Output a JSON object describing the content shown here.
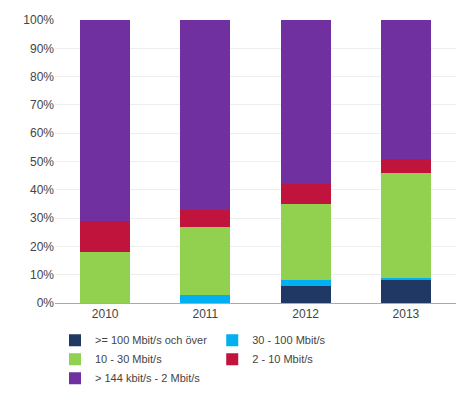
{
  "chart_data": {
    "type": "bar",
    "stacked": true,
    "categories": [
      "2010",
      "2011",
      "2012",
      "2013"
    ],
    "series": [
      {
        "name": ">= 100 Mbit/s och över",
        "color": "#1F3864",
        "values": [
          0,
          0,
          6,
          8
        ]
      },
      {
        "name": "30 - 100 Mbit/s",
        "color": "#00B0F0",
        "values": [
          0,
          3,
          2,
          1
        ]
      },
      {
        "name": "10 - 30 Mbit/s",
        "color": "#92D050",
        "values": [
          18,
          24,
          27,
          37
        ]
      },
      {
        "name": "2 - 10 Mbit/s",
        "color": "#C0143C",
        "values": [
          11,
          6,
          7,
          5
        ]
      },
      {
        "name": "> 144 kbit/s - 2 Mbit/s",
        "color": "#7030A0",
        "values": [
          71,
          67,
          58,
          49
        ]
      }
    ],
    "ylim": [
      0,
      100
    ],
    "yticks": [
      {
        "value": 0,
        "label": "0%"
      },
      {
        "value": 10,
        "label": "10%"
      },
      {
        "value": 20,
        "label": "20%"
      },
      {
        "value": 30,
        "label": "30%"
      },
      {
        "value": 40,
        "label": "40%"
      },
      {
        "value": 50,
        "label": "50%"
      },
      {
        "value": 60,
        "label": "60%"
      },
      {
        "value": 70,
        "label": "70%"
      },
      {
        "value": 80,
        "label": "80%"
      },
      {
        "value": 90,
        "label": "90%"
      },
      {
        "value": 100,
        "label": "100%"
      }
    ],
    "grid": true,
    "legend": "bottom"
  }
}
